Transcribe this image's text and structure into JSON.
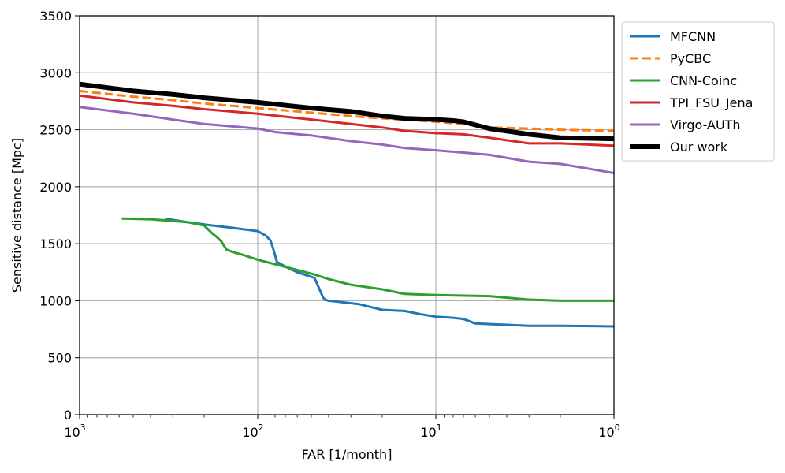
{
  "chart_data": {
    "type": "line",
    "xlabel": "FAR [1/month]",
    "ylabel": "Sensitive distance [Mpc]",
    "x_scale": "log",
    "x_reversed": true,
    "xlim": [
      1000,
      1
    ],
    "ylim": [
      0,
      3500
    ],
    "grid": true,
    "legend_position": "outside-top-right",
    "x_ticks": [
      {
        "value": 1000,
        "base": "10",
        "exp": "3"
      },
      {
        "value": 100,
        "base": "10",
        "exp": "2"
      },
      {
        "value": 10,
        "base": "10",
        "exp": "1"
      },
      {
        "value": 1,
        "base": "10",
        "exp": "0"
      }
    ],
    "y_ticks": [
      0,
      500,
      1000,
      1500,
      2000,
      2500,
      3000,
      3500
    ],
    "series": [
      {
        "name": "MFCNN",
        "color": "#1f77b4",
        "dash": "solid",
        "width": 3,
        "x": [
          332,
          250,
          180,
          140,
          100,
          90,
          85,
          82,
          78,
          76,
          72,
          60,
          48,
          45,
          43,
          42,
          40,
          27,
          20,
          15,
          12,
          10,
          8,
          7,
          6,
          3,
          2,
          1
        ],
        "y": [
          1720,
          1690,
          1660,
          1640,
          1610,
          1570,
          1530,
          1460,
          1340,
          1330,
          1310,
          1250,
          1200,
          1100,
          1030,
          1010,
          1000,
          970,
          920,
          910,
          880,
          860,
          850,
          840,
          800,
          780,
          780,
          775
        ]
      },
      {
        "name": "PyCBC",
        "color": "#ff7f0e",
        "dash": "dashed",
        "width": 3,
        "x": [
          1000,
          500,
          300,
          200,
          100,
          50,
          30,
          20,
          10,
          7,
          5,
          3,
          2,
          1
        ],
        "y": [
          2840,
          2790,
          2760,
          2730,
          2690,
          2650,
          2620,
          2600,
          2570,
          2550,
          2520,
          2510,
          2500,
          2490
        ]
      },
      {
        "name": "CNN-Coinc",
        "color": "#2ca02c",
        "dash": "solid",
        "width": 3,
        "x": [
          580,
          400,
          300,
          250,
          200,
          180,
          170,
          160,
          150,
          140,
          120,
          100,
          80,
          60,
          48,
          40,
          30,
          20,
          15,
          10,
          5,
          3,
          2,
          1
        ],
        "y": [
          1720,
          1715,
          1700,
          1690,
          1660,
          1590,
          1560,
          1520,
          1450,
          1430,
          1400,
          1360,
          1320,
          1270,
          1230,
          1190,
          1140,
          1100,
          1060,
          1050,
          1040,
          1010,
          1000,
          1000
        ]
      },
      {
        "name": "TPI_FSU_Jena",
        "color": "#d62728",
        "dash": "solid",
        "width": 3,
        "x": [
          1000,
          500,
          300,
          200,
          100,
          50,
          30,
          20,
          15,
          10,
          7,
          5,
          3,
          2,
          1
        ],
        "y": [
          2800,
          2740,
          2710,
          2680,
          2640,
          2590,
          2550,
          2520,
          2490,
          2470,
          2460,
          2430,
          2380,
          2380,
          2360
        ]
      },
      {
        "name": "Virgo-AUTh",
        "color": "#9467bd",
        "dash": "solid",
        "width": 3,
        "x": [
          1000,
          500,
          300,
          200,
          100,
          80,
          50,
          30,
          20,
          15,
          10,
          7,
          5,
          3,
          2,
          1
        ],
        "y": [
          2700,
          2640,
          2590,
          2550,
          2510,
          2480,
          2450,
          2400,
          2370,
          2340,
          2320,
          2300,
          2280,
          2220,
          2200,
          2120
        ]
      },
      {
        "name": "Our work",
        "color": "#000000",
        "dash": "solid",
        "width": 6,
        "x": [
          1000,
          500,
          300,
          200,
          100,
          50,
          30,
          20,
          15,
          10,
          8,
          7,
          5,
          3,
          2,
          1
        ],
        "y": [
          2900,
          2840,
          2810,
          2780,
          2740,
          2690,
          2660,
          2620,
          2600,
          2590,
          2580,
          2570,
          2510,
          2460,
          2430,
          2420
        ]
      }
    ]
  }
}
